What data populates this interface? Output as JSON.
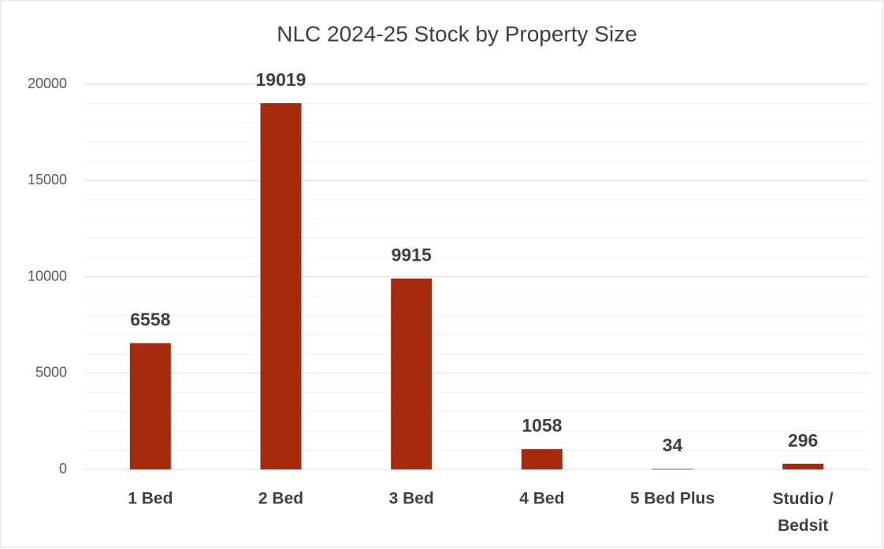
{
  "chart_data": {
    "type": "bar",
    "title": "NLC 2024-25 Stock by Property Size",
    "categories": [
      "1 Bed",
      "2 Bed",
      "3 Bed",
      "4 Bed",
      "5 Bed Plus",
      "Studio / Bedsit"
    ],
    "values": [
      6558,
      19019,
      9915,
      1058,
      34,
      296
    ],
    "color": "#a52a0e",
    "ylim": [
      0,
      20000
    ],
    "yticks": [
      0,
      5000,
      10000,
      15000,
      20000
    ],
    "grid": true,
    "minor_grid": true
  }
}
